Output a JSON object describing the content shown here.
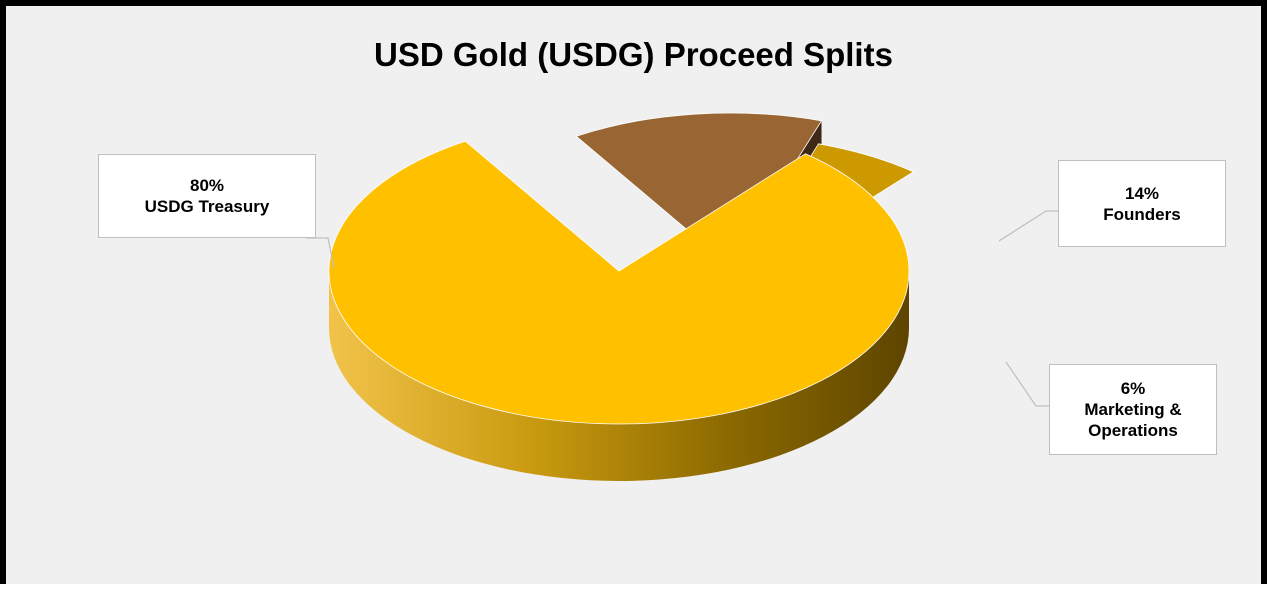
{
  "chart_data": {
    "type": "pie",
    "title": "USD Gold (USDG) Proceed Splits",
    "slices": [
      {
        "label": "USDG Treasury",
        "percent_text": "80%",
        "value": 80,
        "color": "#ffc000"
      },
      {
        "label": "Founders",
        "percent_text": "14%",
        "value": 14,
        "color": "#996633"
      },
      {
        "label_lines": [
          "Marketing &",
          "Operations"
        ],
        "percent_text": "6%",
        "value": 6,
        "color": "#cc9a00"
      }
    ],
    "style": "3d-exploded",
    "legend": "none",
    "data_labels": "callouts"
  }
}
